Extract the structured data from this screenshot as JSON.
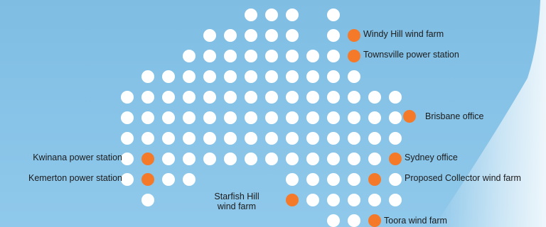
{
  "colors": {
    "background": "#85c2e7",
    "grid_dot": "#ffffff",
    "site_marker": "#f47a2a",
    "label_text": "#1b1b1b"
  },
  "sites": [
    {
      "id": "windy-hill",
      "name": "Windy Hill wind farm"
    },
    {
      "id": "townsville",
      "name": "Townsville power station"
    },
    {
      "id": "brisbane",
      "name": "Brisbane office"
    },
    {
      "id": "kwinana",
      "name": "Kwinana power station"
    },
    {
      "id": "sydney",
      "name": "Sydney office"
    },
    {
      "id": "kemerton",
      "name": "Kemerton power station"
    },
    {
      "id": "proposed-collector",
      "name": "Proposed Collector wind farm"
    },
    {
      "id": "starfish-hill",
      "name_line1": "Starfish Hill",
      "name_line2": "wind farm"
    },
    {
      "id": "toora",
      "name": "Toora wind farm"
    }
  ]
}
